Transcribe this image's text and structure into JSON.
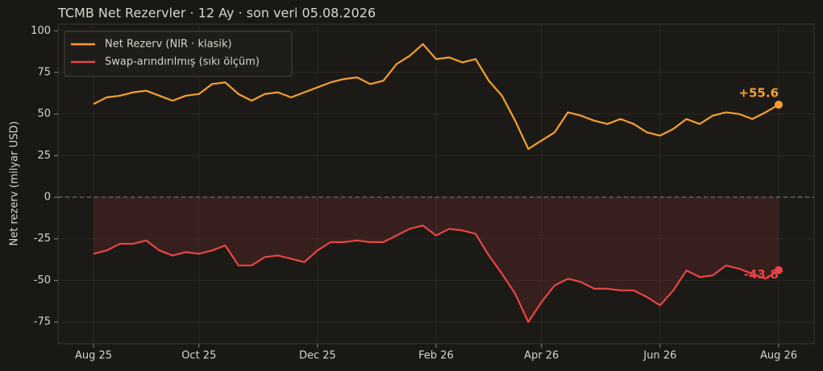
{
  "chart_data": {
    "type": "line",
    "title": "TCMB Net Rezervler · 12 Ay · son veri 05.08.2026",
    "y_label": "Net rezerv (milyar USD)",
    "categories": [
      "Aug 25",
      null,
      null,
      null,
      null,
      null,
      null,
      null,
      "Oct 25",
      null,
      null,
      null,
      null,
      null,
      null,
      null,
      null,
      "Dec 25",
      null,
      null,
      null,
      null,
      null,
      null,
      null,
      null,
      "Feb 26",
      null,
      null,
      null,
      null,
      null,
      null,
      null,
      "Apr 26",
      null,
      null,
      null,
      null,
      null,
      null,
      null,
      null,
      "Jun 26",
      null,
      null,
      null,
      null,
      null,
      null,
      null,
      null,
      "Aug 26"
    ],
    "series": [
      {
        "name": "Net Rezerv (NIR · klasik)",
        "color": "#f5a030",
        "values": [
          56,
          60,
          61,
          63,
          64,
          61,
          58,
          61,
          62,
          68,
          69,
          62,
          58,
          62,
          63,
          60,
          63,
          66,
          69,
          71,
          72,
          68,
          70,
          80,
          85,
          92,
          83,
          84,
          81,
          83,
          70,
          61,
          46,
          29,
          34,
          39,
          51,
          49,
          46,
          44,
          47,
          44,
          39,
          37,
          41,
          47,
          44,
          49,
          51,
          50,
          47,
          51,
          55.6
        ],
        "value_labels": [
          null,
          null,
          null,
          null,
          null,
          null,
          null,
          null,
          null,
          null,
          null,
          null,
          null,
          null,
          null,
          null,
          null,
          null,
          null,
          null,
          null,
          null,
          null,
          null,
          null,
          null,
          null,
          null,
          null,
          null,
          null,
          null,
          null,
          null,
          null,
          null,
          null,
          null,
          null,
          null,
          null,
          null,
          null,
          null,
          null,
          null,
          null,
          null,
          null,
          null,
          null,
          null,
          "+55.6"
        ]
      },
      {
        "name": "Swap-arındırılmış (sıkı ölçüm)",
        "color": "#e84545",
        "values": [
          -34,
          -32,
          -28,
          -28,
          -26,
          -32,
          -35,
          -33,
          -34,
          -32,
          -29,
          -41,
          -41,
          -36,
          -35,
          -37,
          -39,
          -32,
          -27,
          -27,
          -26,
          -27,
          -27,
          -23,
          -19,
          -17,
          -23,
          -19,
          -20,
          -22,
          -35,
          -46,
          -58,
          -75,
          -63,
          -53,
          -49,
          -51,
          -55,
          -55,
          -56,
          -56,
          -60,
          -65,
          -56,
          -44,
          -48,
          -47,
          -41,
          -43,
          -46,
          -49,
          -43.8
        ],
        "value_labels": [
          null,
          null,
          null,
          null,
          null,
          null,
          null,
          null,
          null,
          null,
          null,
          null,
          null,
          null,
          null,
          null,
          null,
          null,
          null,
          null,
          null,
          null,
          null,
          null,
          null,
          null,
          null,
          null,
          null,
          null,
          null,
          null,
          null,
          null,
          null,
          null,
          null,
          null,
          null,
          null,
          null,
          null,
          null,
          null,
          null,
          null,
          null,
          null,
          null,
          null,
          null,
          null,
          "-43.8"
        ]
      }
    ],
    "ylim": [
      -88,
      104
    ],
    "yticks": [
      -75,
      -50,
      -25,
      0,
      25,
      50,
      75,
      100
    ],
    "grid": true,
    "legend": "upper-left"
  }
}
